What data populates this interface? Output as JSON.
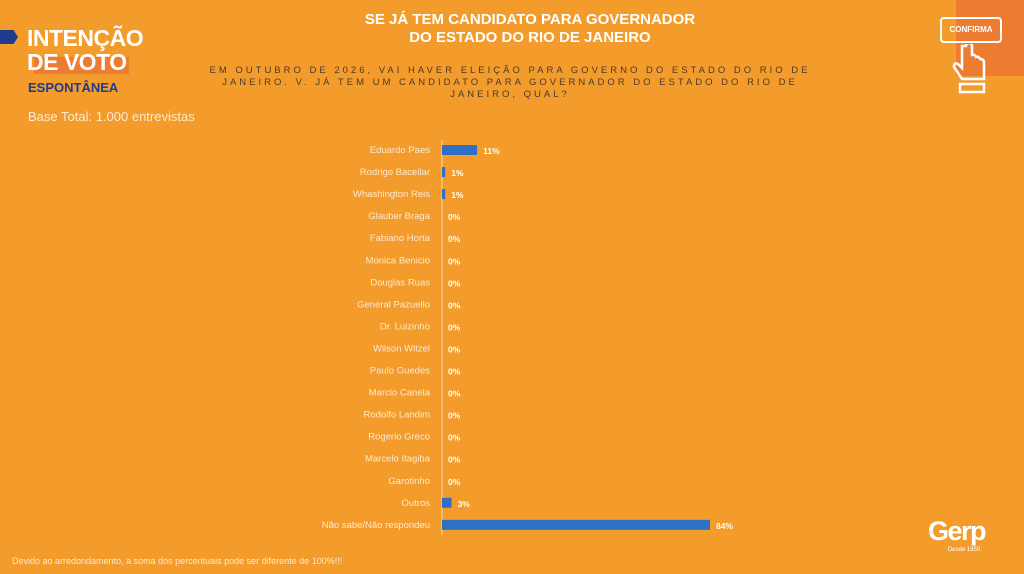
{
  "header": {
    "title_line1": "INTENÇÃO",
    "title_line2": "DE VOTO",
    "subtitle": "ESPONTÂNEA",
    "base": "Base Total: 1.000 entrevistas",
    "chart_title_line1": "SE JÁ TEM CANDIDATO PARA GOVERNADOR",
    "chart_title_line2": "DO ESTADO DO RIO DE JANEIRO",
    "question": "EM OUTUBRO DE 2026, VAI HAVER ELEIÇÃO PARA GOVERNO DO ESTADO DO RIO DE JANEIRO. V. JÁ TEM UM CANDIDATO PARA GOVERNADOR DO ESTADO DO RIO DE JANEIRO, QUAL?",
    "confirm_label": "CONFIRMA"
  },
  "footer": {
    "note": "Devido ao arredondamento, a soma dos percentuais pode ser diferente de 100%!!!",
    "logo": "Gerp",
    "logo_tag": "Desde 1950"
  },
  "colors": {
    "background": "#f39c2b",
    "bar": "#2f6fc4",
    "accent": "#ec7c32",
    "navy": "#1d3c8f"
  },
  "chart_data": {
    "type": "bar",
    "orientation": "horizontal",
    "categories": [
      "Eduardo Paes",
      "Rodrigo Bacellar",
      "Whashington Reis",
      "Glauber Braga",
      "Fabiano Horta",
      "Monica Benicio",
      "Douglas Ruas",
      "General Pazuello",
      "Dr. Luizinho",
      "Wilson Witzel",
      "Paulo Guedes",
      "Marcio Canela",
      "Rodolfo Landim",
      "Rogerio Greco",
      "Marcelo Itagiba",
      "Garotinho",
      "Outros",
      "Não sabe/Não respondeu"
    ],
    "values": [
      11,
      1,
      1,
      0,
      0,
      0,
      0,
      0,
      0,
      0,
      0,
      0,
      0,
      0,
      0,
      0,
      3,
      84
    ],
    "labels": [
      "11%",
      "1%",
      "1%",
      "0%",
      "0%",
      "0%",
      "0%",
      "0%",
      "0%",
      "0%",
      "0%",
      "0%",
      "0%",
      "0%",
      "0%",
      "0%",
      "3%",
      "84%"
    ],
    "xlim": [
      0,
      84
    ],
    "grid": false
  }
}
